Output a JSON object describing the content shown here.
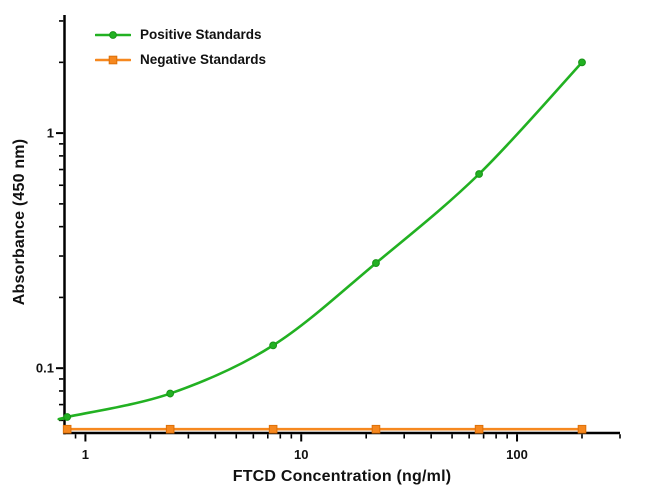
{
  "chart_data": {
    "type": "line",
    "title": "",
    "background": "#ffffff",
    "axis_color": "#000000",
    "text_color": "#111111",
    "x_axis": {
      "label": "FTCD Concentration (ng/ml)",
      "scale": "log",
      "range": [
        0.8,
        300
      ],
      "major_ticks": [
        1,
        10,
        100
      ],
      "major_tick_labels": [
        "1",
        "10",
        "100"
      ],
      "minor_ticks": [
        0.9,
        2,
        3,
        4,
        5,
        6,
        7,
        8,
        9,
        20,
        30,
        40,
        50,
        60,
        70,
        80,
        90,
        200,
        300
      ]
    },
    "y_axis": {
      "label": "Absorbance (450 nm)",
      "scale": "log",
      "range": [
        0.053,
        3.18
      ],
      "major_ticks": [
        0.1,
        1
      ],
      "major_tick_labels": [
        "0.1",
        "1"
      ],
      "minor_ticks": [
        0.06,
        0.07,
        0.08,
        0.09,
        0.2,
        0.3,
        0.4,
        0.5,
        0.6,
        0.7,
        0.8,
        0.9,
        2,
        3
      ]
    },
    "legend": {
      "position": "top-left"
    },
    "series": [
      {
        "name": "Positive Standards",
        "color": "#22b122",
        "marker_border": "#189318",
        "marker": "circle",
        "smooth": true,
        "x": [
          0.823,
          2.47,
          7.41,
          22.2,
          66.7,
          200
        ],
        "y": [
          0.062,
          0.078,
          0.125,
          0.28,
          0.67,
          2.0
        ]
      },
      {
        "name": "Negative Standards",
        "color": "#f6881f",
        "marker_border": "#dd7009",
        "marker": "square",
        "smooth": false,
        "x": [
          0.823,
          2.47,
          7.41,
          22.2,
          66.7,
          200
        ],
        "y": [
          0.055,
          0.055,
          0.055,
          0.055,
          0.055,
          0.055
        ]
      }
    ]
  }
}
